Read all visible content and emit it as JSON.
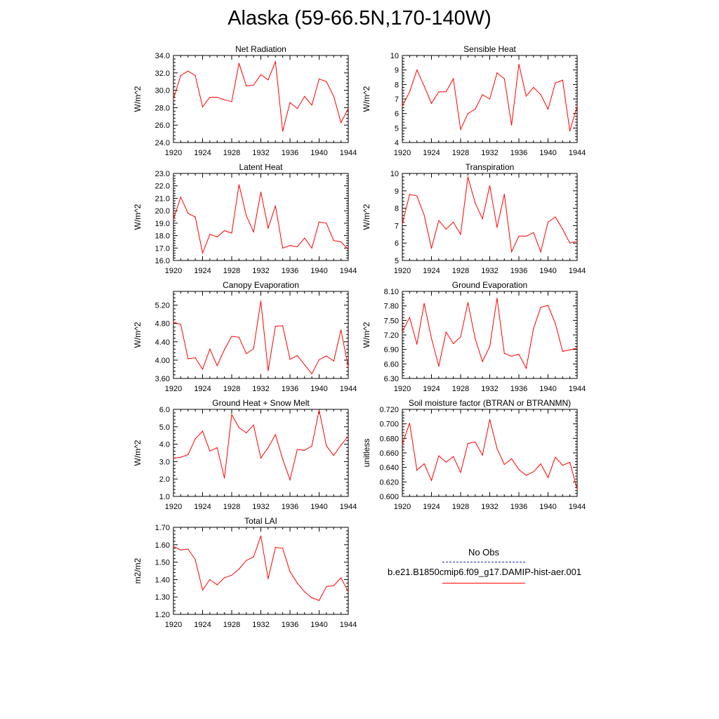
{
  "title": "Alaska (59-66.5N,170-140W)",
  "legend": {
    "obs_label": "No Obs",
    "run_label": "b.e21.B1850cmip6.f09_g17.DAMIP-hist-aer.001",
    "run_color": "#ff0000",
    "obs_color": "#1f2a9e"
  },
  "chart_data": [
    {
      "type": "line",
      "title": "Net Radiation",
      "ylabel": "W/m^2",
      "xlim": [
        1920,
        1944
      ],
      "ylim": [
        24.0,
        34.0
      ],
      "xticks": [
        "1920",
        "1924",
        "1928",
        "1932",
        "1936",
        "1940",
        "1944"
      ],
      "yticks": [
        "24.0",
        "26.0",
        "28.0",
        "30.0",
        "32.0",
        "34.0"
      ],
      "x": [
        1920,
        1921,
        1922,
        1923,
        1924,
        1925,
        1926,
        1927,
        1928,
        1929,
        1930,
        1931,
        1932,
        1933,
        1934,
        1935,
        1936,
        1937,
        1938,
        1939,
        1940,
        1941,
        1942,
        1943,
        1944
      ],
      "series": [
        {
          "values": [
            29.0,
            31.7,
            32.2,
            31.7,
            28.1,
            29.2,
            29.2,
            28.9,
            28.7,
            33.1,
            30.5,
            30.6,
            31.8,
            31.2,
            33.3,
            25.3,
            28.6,
            27.9,
            29.3,
            28.3,
            31.3,
            31.0,
            29.3,
            26.3,
            27.9
          ]
        }
      ]
    },
    {
      "type": "line",
      "title": "Sensible Heat",
      "ylabel": "W/m^2",
      "xlim": [
        1920,
        1944
      ],
      "ylim": [
        4,
        10
      ],
      "xticks": [
        "1920",
        "1924",
        "1928",
        "1932",
        "1936",
        "1940",
        "1944"
      ],
      "yticks": [
        "4",
        "5",
        "6",
        "7",
        "8",
        "9",
        "10"
      ],
      "x": [
        1920,
        1921,
        1922,
        1923,
        1924,
        1925,
        1926,
        1927,
        1928,
        1929,
        1930,
        1931,
        1932,
        1933,
        1934,
        1935,
        1936,
        1937,
        1938,
        1939,
        1940,
        1941,
        1942,
        1943,
        1944
      ],
      "series": [
        {
          "values": [
            6.5,
            7.5,
            9.0,
            7.9,
            6.7,
            7.5,
            7.5,
            8.4,
            4.9,
            6.0,
            6.3,
            7.3,
            7.0,
            8.8,
            8.4,
            5.2,
            9.4,
            7.2,
            7.8,
            7.3,
            6.3,
            8.1,
            8.3,
            4.8,
            6.5
          ]
        }
      ]
    },
    {
      "type": "line",
      "title": "Latent Heat",
      "ylabel": "W/m^2",
      "xlim": [
        1920,
        1944
      ],
      "ylim": [
        16.0,
        23.0
      ],
      "xticks": [
        "1920",
        "1924",
        "1928",
        "1932",
        "1936",
        "1940",
        "1944"
      ],
      "yticks": [
        "16.0",
        "17.0",
        "18.0",
        "19.0",
        "20.0",
        "21.0",
        "22.0",
        "23.0"
      ],
      "x": [
        1920,
        1921,
        1922,
        1923,
        1924,
        1925,
        1926,
        1927,
        1928,
        1929,
        1930,
        1931,
        1932,
        1933,
        1934,
        1935,
        1936,
        1937,
        1938,
        1939,
        1940,
        1941,
        1942,
        1943,
        1944
      ],
      "series": [
        {
          "values": [
            19.3,
            21.1,
            19.8,
            19.5,
            16.6,
            18.1,
            17.9,
            18.4,
            18.2,
            22.1,
            19.6,
            18.3,
            21.5,
            18.6,
            20.4,
            17.0,
            17.2,
            17.1,
            17.8,
            17.0,
            19.1,
            19.0,
            17.6,
            17.5,
            16.9
          ]
        }
      ]
    },
    {
      "type": "line",
      "title": "Transpiration",
      "ylabel": "W/m^2",
      "xlim": [
        1920,
        1944
      ],
      "ylim": [
        5,
        10
      ],
      "xticks": [
        "1920",
        "1924",
        "1928",
        "1932",
        "1936",
        "1940",
        "1944"
      ],
      "yticks": [
        "5",
        "6",
        "7",
        "8",
        "9",
        "10"
      ],
      "x": [
        1920,
        1921,
        1922,
        1923,
        1924,
        1925,
        1926,
        1927,
        1928,
        1929,
        1930,
        1931,
        1932,
        1933,
        1934,
        1935,
        1936,
        1937,
        1938,
        1939,
        1940,
        1941,
        1942,
        1943,
        1944
      ],
      "series": [
        {
          "values": [
            7.1,
            8.8,
            8.7,
            7.6,
            5.7,
            7.3,
            6.8,
            7.2,
            6.5,
            9.8,
            8.3,
            7.4,
            9.3,
            6.9,
            8.8,
            5.5,
            6.4,
            6.4,
            6.6,
            5.5,
            7.2,
            7.5,
            6.8,
            6.0,
            6.1
          ]
        }
      ]
    },
    {
      "type": "line",
      "title": "Canopy Evaporation",
      "ylabel": "W/m^2",
      "xlim": [
        1920,
        1944
      ],
      "ylim": [
        3.6,
        5.5
      ],
      "xticks": [
        "1920",
        "1924",
        "1928",
        "1932",
        "1936",
        "1940",
        "1944"
      ],
      "yticks": [
        "3.60",
        "4.00",
        "4.40",
        "4.80",
        "5.20"
      ],
      "x": [
        1920,
        1921,
        1922,
        1923,
        1924,
        1925,
        1926,
        1927,
        1928,
        1929,
        1930,
        1931,
        1932,
        1933,
        1934,
        1935,
        1936,
        1937,
        1938,
        1939,
        1940,
        1941,
        1942,
        1943,
        1944
      ],
      "series": [
        {
          "values": [
            4.83,
            4.78,
            4.03,
            4.05,
            3.8,
            4.24,
            3.88,
            4.23,
            4.52,
            4.5,
            4.14,
            4.25,
            5.29,
            3.77,
            4.74,
            4.75,
            4.02,
            4.1,
            3.9,
            3.7,
            4.01,
            4.09,
            3.98,
            4.66,
            3.85
          ]
        }
      ]
    },
    {
      "type": "line",
      "title": "Ground Evaporation",
      "ylabel": "W/m^2",
      "xlim": [
        1920,
        1944
      ],
      "ylim": [
        6.3,
        8.1
      ],
      "xticks": [
        "1920",
        "1924",
        "1928",
        "1932",
        "1936",
        "1940",
        "1944"
      ],
      "yticks": [
        "6.30",
        "6.60",
        "6.90",
        "7.20",
        "7.50",
        "7.80",
        "8.10"
      ],
      "x": [
        1920,
        1921,
        1922,
        1923,
        1924,
        1925,
        1926,
        1927,
        1928,
        1929,
        1930,
        1931,
        1932,
        1933,
        1934,
        1935,
        1936,
        1937,
        1938,
        1939,
        1940,
        1941,
        1942,
        1943,
        1944
      ],
      "series": [
        {
          "values": [
            7.27,
            7.56,
            7.01,
            7.85,
            7.13,
            6.55,
            7.26,
            7.02,
            7.16,
            7.87,
            7.12,
            6.65,
            6.96,
            7.96,
            6.82,
            6.76,
            6.8,
            6.51,
            7.33,
            7.77,
            7.81,
            7.44,
            6.86,
            6.89,
            6.93
          ]
        }
      ]
    },
    {
      "type": "line",
      "title": "Ground Heat + Snow Melt",
      "ylabel": "W/m^2",
      "xlim": [
        1920,
        1944
      ],
      "ylim": [
        1.0,
        6.0
      ],
      "xticks": [
        "1920",
        "1924",
        "1928",
        "1932",
        "1936",
        "1940",
        "1944"
      ],
      "yticks": [
        "1.0",
        "2.0",
        "3.0",
        "4.0",
        "5.0",
        "6.0"
      ],
      "x": [
        1920,
        1921,
        1922,
        1923,
        1924,
        1925,
        1926,
        1927,
        1928,
        1929,
        1930,
        1931,
        1932,
        1933,
        1934,
        1935,
        1936,
        1937,
        1938,
        1939,
        1940,
        1941,
        1942,
        1943,
        1944
      ],
      "series": [
        {
          "values": [
            3.2,
            3.25,
            3.4,
            4.3,
            4.75,
            3.6,
            3.8,
            2.05,
            5.7,
            4.95,
            4.65,
            5.1,
            3.2,
            3.8,
            4.55,
            3.15,
            1.95,
            3.7,
            3.65,
            3.9,
            5.95,
            3.9,
            3.35,
            3.95,
            4.45
          ]
        }
      ]
    },
    {
      "type": "line",
      "title": "Soil moisture factor (BTRAN or BTRANMN)",
      "ylabel": "unitless",
      "xlim": [
        1920,
        1944
      ],
      "ylim": [
        0.6,
        0.72
      ],
      "xticks": [
        "1920",
        "1924",
        "1928",
        "1932",
        "1936",
        "1940",
        "1944"
      ],
      "yticks": [
        "0.600",
        "0.620",
        "0.640",
        "0.660",
        "0.680",
        "0.700",
        "0.720"
      ],
      "x": [
        1920,
        1921,
        1922,
        1923,
        1924,
        1925,
        1926,
        1927,
        1928,
        1929,
        1930,
        1931,
        1932,
        1933,
        1934,
        1935,
        1936,
        1937,
        1938,
        1939,
        1940,
        1941,
        1942,
        1943,
        1944
      ],
      "series": [
        {
          "values": [
            0.672,
            0.701,
            0.636,
            0.645,
            0.622,
            0.656,
            0.647,
            0.655,
            0.633,
            0.673,
            0.675,
            0.657,
            0.706,
            0.666,
            0.644,
            0.652,
            0.637,
            0.629,
            0.634,
            0.645,
            0.626,
            0.654,
            0.643,
            0.647,
            0.61
          ]
        }
      ]
    },
    {
      "type": "line",
      "title": "Total LAI",
      "ylabel": "m2/m2",
      "xlim": [
        1920,
        1944
      ],
      "ylim": [
        1.2,
        1.7
      ],
      "xticks": [
        "1920",
        "1924",
        "1928",
        "1932",
        "1936",
        "1940",
        "1944"
      ],
      "yticks": [
        "1.20",
        "1.30",
        "1.40",
        "1.50",
        "1.60",
        "1.70"
      ],
      "x": [
        1920,
        1921,
        1922,
        1923,
        1924,
        1925,
        1926,
        1927,
        1928,
        1929,
        1930,
        1931,
        1932,
        1933,
        1934,
        1935,
        1936,
        1937,
        1938,
        1939,
        1940,
        1941,
        1942,
        1943,
        1944
      ],
      "series": [
        {
          "values": [
            1.59,
            1.57,
            1.575,
            1.515,
            1.34,
            1.4,
            1.37,
            1.41,
            1.425,
            1.46,
            1.51,
            1.53,
            1.65,
            1.405,
            1.585,
            1.58,
            1.445,
            1.38,
            1.33,
            1.295,
            1.28,
            1.36,
            1.365,
            1.41,
            1.33
          ]
        }
      ]
    }
  ]
}
